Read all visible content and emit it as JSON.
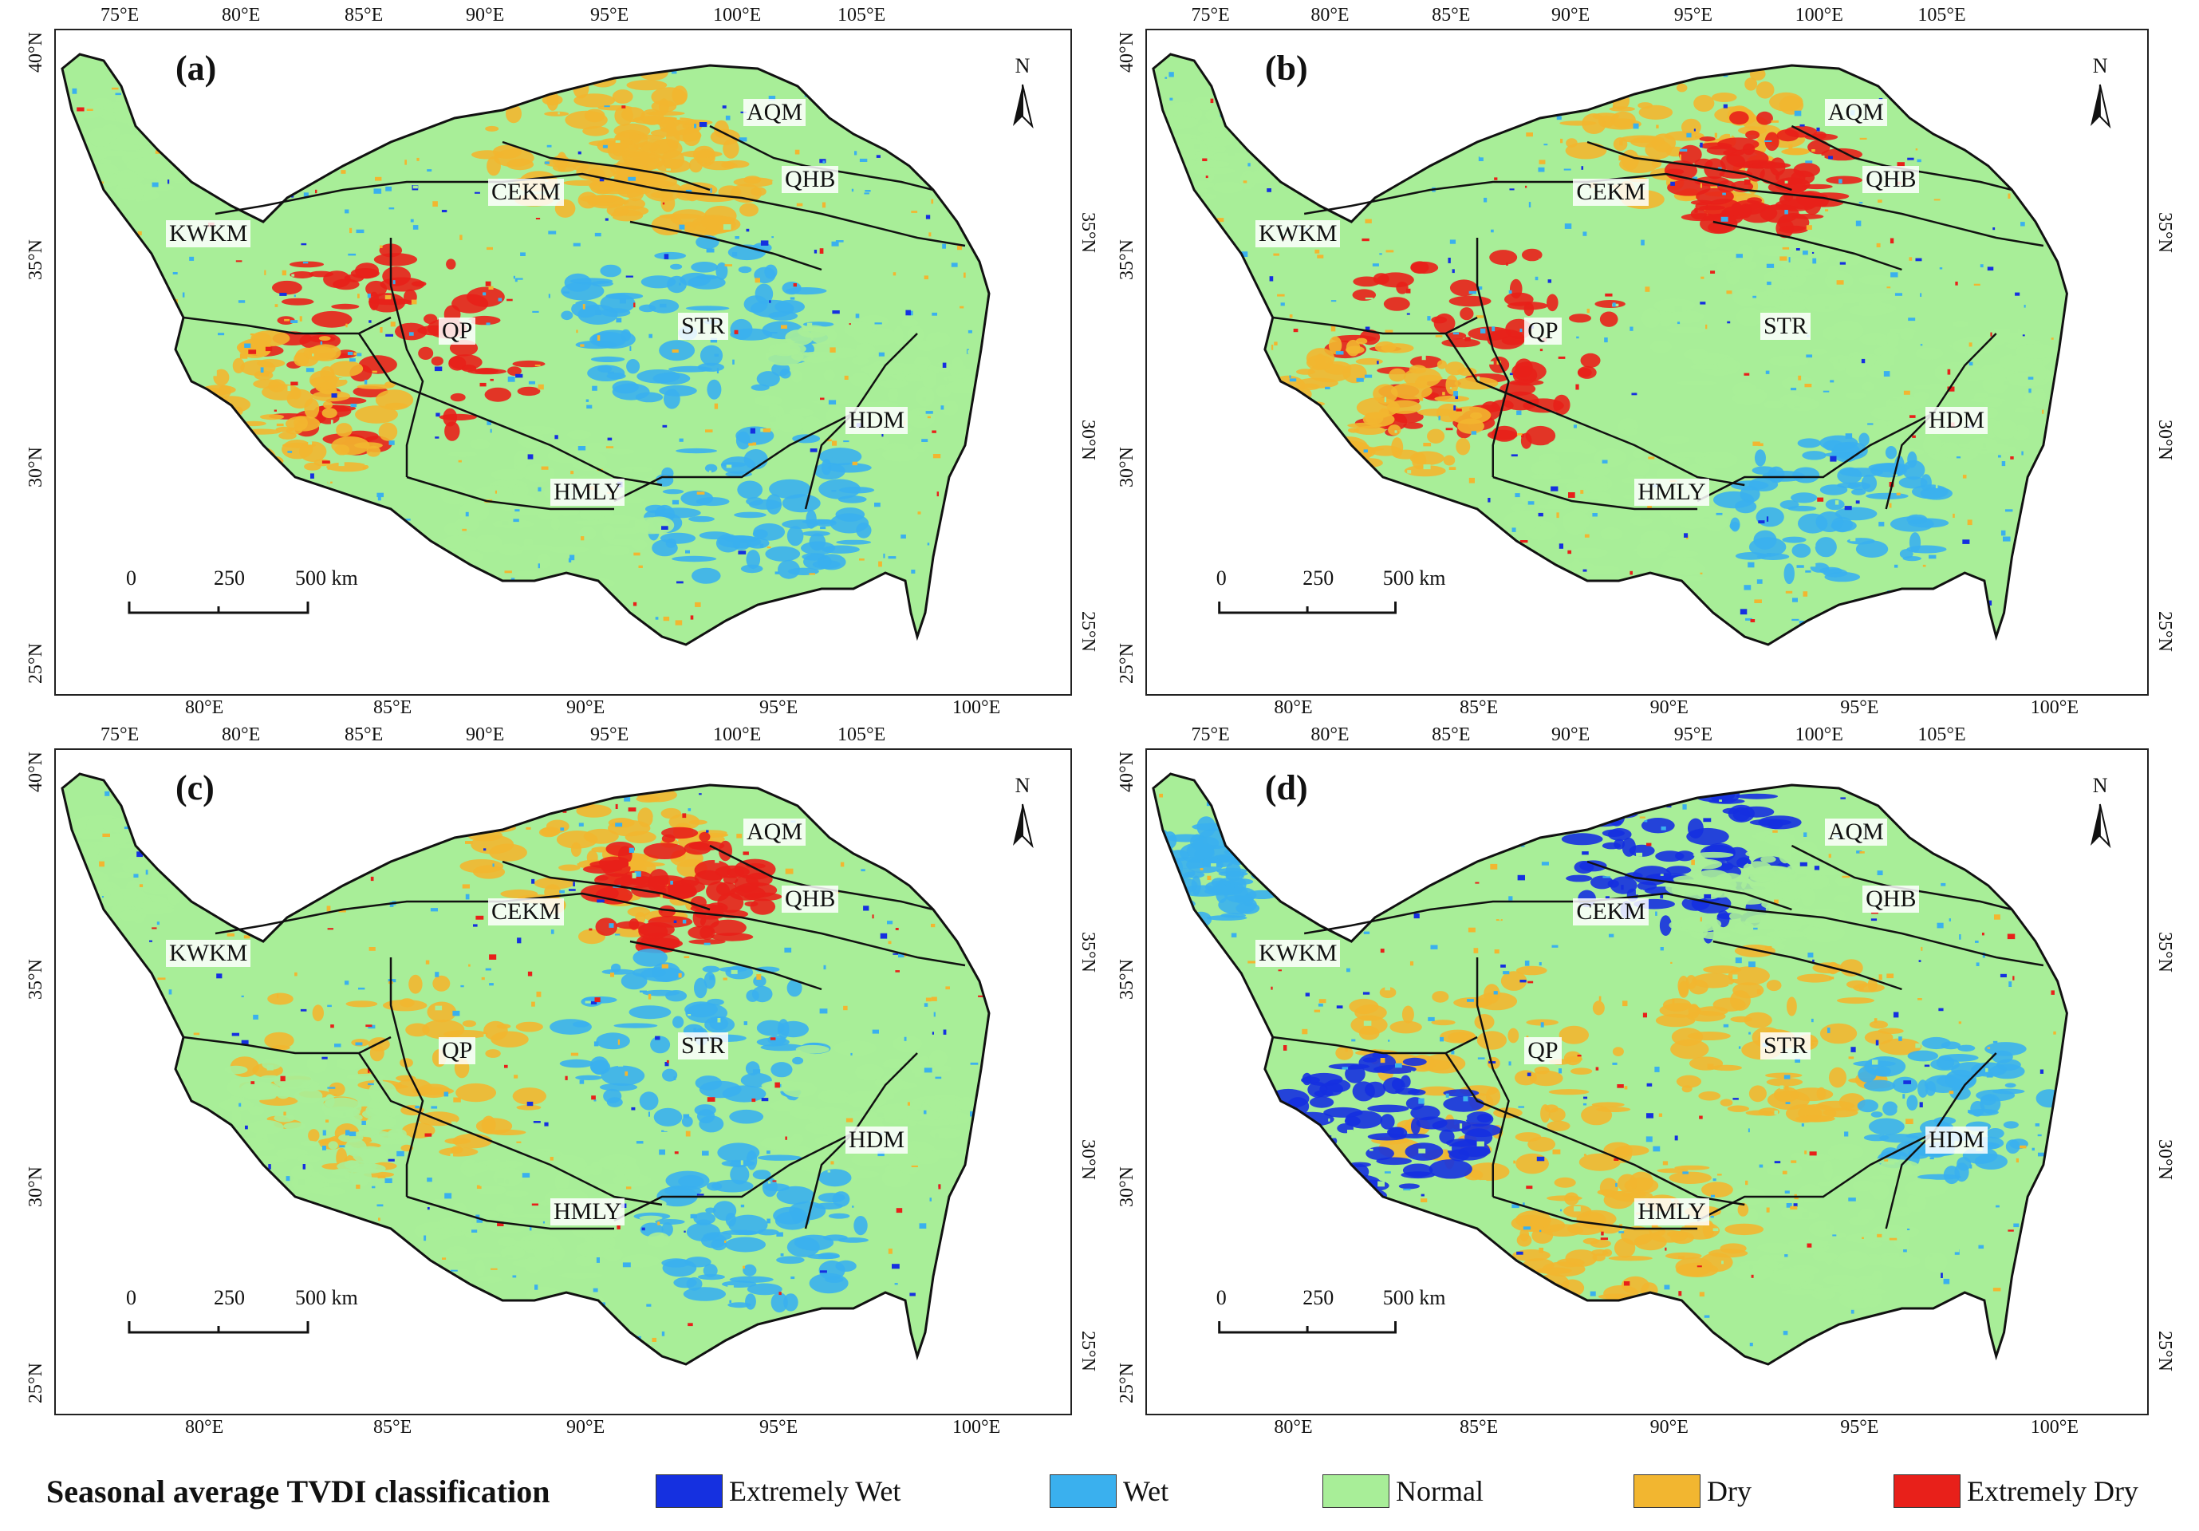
{
  "panels": [
    {
      "label": "(a)",
      "regions": {
        "aqm": "AQM",
        "qhb": "QHB",
        "cekm": "CEKM",
        "kwkm": "KWKM",
        "qp": "QP",
        "str": "STR",
        "hdm": "HDM",
        "hmly": "HMLY"
      }
    },
    {
      "label": "(b)",
      "regions": {
        "aqm": "AQM",
        "qhb": "QHB",
        "cekm": "CEKM",
        "kwkm": "KWKM",
        "qp": "QP",
        "str": "STR",
        "hdm": "HDM",
        "hmly": "HMLY"
      }
    },
    {
      "label": "(c)",
      "regions": {
        "aqm": "AQM",
        "qhb": "QHB",
        "cekm": "CEKM",
        "kwkm": "KWKM",
        "qp": "QP",
        "str": "STR",
        "hdm": "HDM",
        "hmly": "HMLY"
      }
    },
    {
      "label": "(d)",
      "regions": {
        "aqm": "AQM",
        "qhb": "QHB",
        "cekm": "CEKM",
        "kwkm": "KWKM",
        "qp": "QP",
        "str": "STR",
        "hdm": "HDM",
        "hmly": "HMLY"
      }
    }
  ],
  "top_ticks": [
    "75°E",
    "80°E",
    "85°E",
    "90°E",
    "95°E",
    "100°E",
    "105°E"
  ],
  "bottom_ticks": [
    "80°E",
    "85°E",
    "90°E",
    "95°E",
    "100°E"
  ],
  "left_ticks": [
    "40°N",
    "35°N",
    "30°N",
    "25°N"
  ],
  "right_ticks": [
    "35°N",
    "30°N",
    "25°N"
  ],
  "north_label": "N",
  "scale_labels": [
    "0",
    "250",
    "500 km"
  ],
  "legend": {
    "title": "Seasonal average TVDI classification",
    "items": [
      {
        "label": "Extremely Wet",
        "color": "#1530e0"
      },
      {
        "label": "Wet",
        "color": "#3ab0ee"
      },
      {
        "label": "Normal",
        "color": "#a8ee98"
      },
      {
        "label": "Dry",
        "color": "#f2b630"
      },
      {
        "label": "Extremely Dry",
        "color": "#e8201a"
      }
    ]
  }
}
